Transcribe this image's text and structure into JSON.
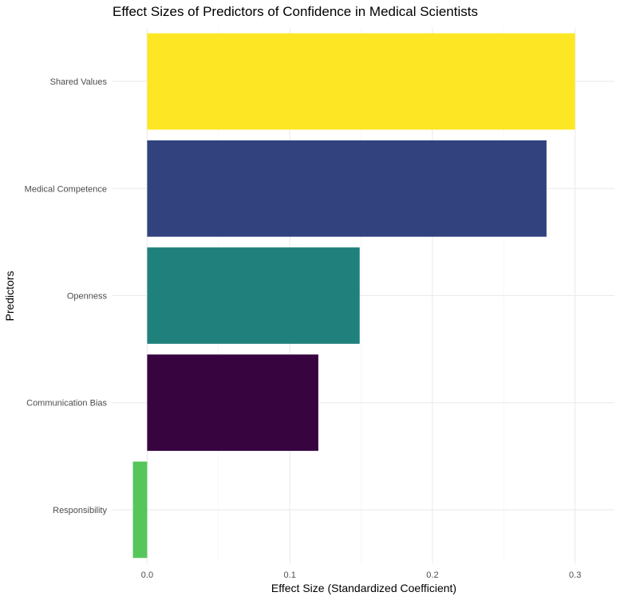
{
  "chart_data": {
    "type": "bar",
    "orientation": "horizontal",
    "title": "Effect Sizes of Predictors of Confidence in Medical Scientists",
    "xlabel": "Effect Size (Standardized Coefficient)",
    "ylabel": "Predictors",
    "categories": [
      "Shared Values",
      "Medical Competence",
      "Openness",
      "Communication Bias",
      "Responsibility"
    ],
    "values": [
      0.3,
      0.28,
      0.149,
      0.12,
      -0.01
    ],
    "colors": [
      "#FDE725",
      "#31427E",
      "#20817C",
      "#370440",
      "#55C65A"
    ],
    "x_ticks": [
      "0.0",
      "0.1",
      "0.2",
      "0.3"
    ],
    "x_tick_values": [
      0.0,
      0.1,
      0.2,
      0.3
    ],
    "xlim": [
      -0.0243,
      0.3276
    ],
    "grid": true,
    "legend": "none"
  }
}
